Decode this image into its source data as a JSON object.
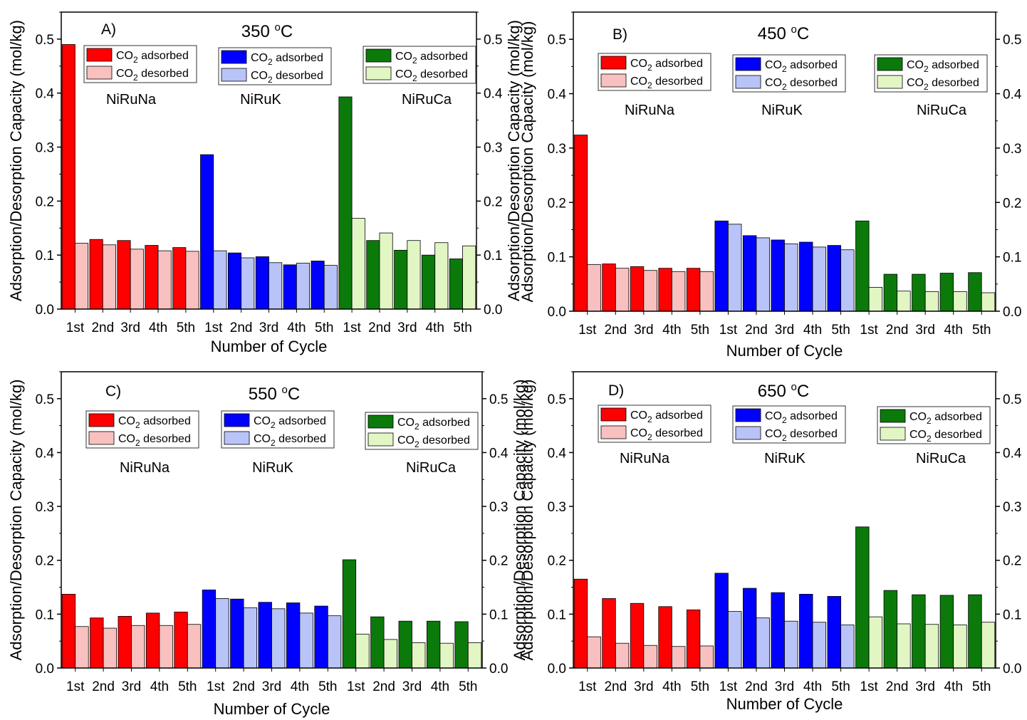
{
  "chart_data": [
    {
      "type": "bar",
      "panel_label": "A)",
      "title": "350",
      "title_sup": "o",
      "title_unit": "C",
      "xlabel": "Number of Cycle",
      "ylabel": "Adsorption/Desorption Capacity (mol/kg)",
      "ylim": [
        0,
        0.55
      ],
      "yticks": [
        "0.0",
        "0.1",
        "0.2",
        "0.3",
        "0.4",
        "0.5"
      ],
      "categories": [
        "1st",
        "2nd",
        "3rd",
        "4th",
        "5th",
        "1st",
        "2nd",
        "3rd",
        "4th",
        "5th",
        "1st",
        "2nd",
        "3rd",
        "4th",
        "5th"
      ],
      "groups": [
        {
          "name": "NiRuNa",
          "colors": {
            "adsorbed": "#ff0000",
            "desorbed": "#f9c0c0"
          },
          "adsorbed": [
            0.49,
            0.129,
            0.127,
            0.118,
            0.114
          ],
          "desorbed": [
            0.122,
            0.119,
            0.111,
            0.108,
            0.107
          ]
        },
        {
          "name": "NiRuK",
          "colors": {
            "adsorbed": "#0000ff",
            "desorbed": "#b8c4f8"
          },
          "adsorbed": [
            0.286,
            0.104,
            0.097,
            0.082,
            0.089
          ],
          "desorbed": [
            0.108,
            0.095,
            0.086,
            0.085,
            0.081
          ]
        },
        {
          "name": "NiRuCa",
          "colors": {
            "adsorbed": "#0b7a0b",
            "desorbed": "#e2f6c4"
          },
          "adsorbed": [
            0.393,
            0.127,
            0.109,
            0.1,
            0.093
          ],
          "desorbed": [
            0.168,
            0.141,
            0.127,
            0.123,
            0.117
          ]
        }
      ],
      "legend": {
        "adsorbed_label": "adsorbed",
        "desorbed_label": "desorbed",
        "species": "CO",
        "subscript": "2"
      }
    },
    {
      "type": "bar",
      "panel_label": "B)",
      "title": "450",
      "title_sup": "o",
      "title_unit": "C",
      "xlabel": "Number of Cycle",
      "ylabel": "Adsorption/Desorption Capacity (mol/kg)",
      "ylim": [
        0,
        0.55
      ],
      "yticks": [
        "0.0",
        "0.1",
        "0.2",
        "0.3",
        "0.4",
        "0.5"
      ],
      "categories": [
        "1st",
        "2nd",
        "3rd",
        "4th",
        "5th",
        "1st",
        "2nd",
        "3rd",
        "4th",
        "5th",
        "1st",
        "2nd",
        "3rd",
        "4th",
        "5th"
      ],
      "groups": [
        {
          "name": "NiRuNa",
          "colors": {
            "adsorbed": "#ff0000",
            "desorbed": "#f9c0c0"
          },
          "adsorbed": [
            0.324,
            0.087,
            0.082,
            0.079,
            0.079
          ],
          "desorbed": [
            0.086,
            0.079,
            0.075,
            0.073,
            0.073
          ]
        },
        {
          "name": "NiRuK",
          "colors": {
            "adsorbed": "#0000ff",
            "desorbed": "#b8c4f8"
          },
          "adsorbed": [
            0.166,
            0.139,
            0.131,
            0.127,
            0.121
          ],
          "desorbed": [
            0.16,
            0.135,
            0.124,
            0.118,
            0.113
          ]
        },
        {
          "name": "NiRuCa",
          "colors": {
            "adsorbed": "#0b7a0b",
            "desorbed": "#e2f6c4"
          },
          "adsorbed": [
            0.166,
            0.068,
            0.068,
            0.07,
            0.071
          ],
          "desorbed": [
            0.044,
            0.037,
            0.036,
            0.036,
            0.034
          ]
        }
      ],
      "legend": {
        "adsorbed_label": "adsorbed",
        "desorbed_label": "desorbed",
        "species": "CO",
        "subscript": "2"
      }
    },
    {
      "type": "bar",
      "panel_label": "C)",
      "title": "550",
      "title_sup": "o",
      "title_unit": "C",
      "xlabel": "Number of Cycle",
      "ylabel": "Adsorption/Desorption Capacity (mol/kg)",
      "ylim": [
        0,
        0.55
      ],
      "yticks": [
        "0.0",
        "0.1",
        "0.2",
        "0.3",
        "0.4",
        "0.5"
      ],
      "categories": [
        "1st",
        "2nd",
        "3rd",
        "4th",
        "5th",
        "1st",
        "2nd",
        "3rd",
        "4th",
        "5th",
        "1st",
        "2nd",
        "3rd",
        "4th",
        "5th"
      ],
      "groups": [
        {
          "name": "NiRuNa",
          "colors": {
            "adsorbed": "#ff0000",
            "desorbed": "#f9c0c0"
          },
          "adsorbed": [
            0.137,
            0.093,
            0.096,
            0.102,
            0.104
          ],
          "desorbed": [
            0.077,
            0.074,
            0.079,
            0.079,
            0.081
          ]
        },
        {
          "name": "NiRuK",
          "colors": {
            "adsorbed": "#0000ff",
            "desorbed": "#b8c4f8"
          },
          "adsorbed": [
            0.145,
            0.128,
            0.122,
            0.121,
            0.115
          ],
          "desorbed": [
            0.129,
            0.112,
            0.11,
            0.102,
            0.097
          ]
        },
        {
          "name": "NiRuCa",
          "colors": {
            "adsorbed": "#0b7a0b",
            "desorbed": "#e2f6c4"
          },
          "adsorbed": [
            0.201,
            0.095,
            0.087,
            0.087,
            0.086
          ],
          "desorbed": [
            0.063,
            0.053,
            0.047,
            0.046,
            0.047
          ]
        }
      ],
      "legend": {
        "adsorbed_label": "adsorbed",
        "desorbed_label": "desorbed",
        "species": "CO",
        "subscript": "2"
      }
    },
    {
      "type": "bar",
      "panel_label": "D)",
      "title": "650",
      "title_sup": "o",
      "title_unit": "C",
      "xlabel": "Number of Cycle",
      "ylabel": "Adsorption/Desorption Capacity (mol/kg)",
      "ylim": [
        0,
        0.55
      ],
      "yticks": [
        "0.0",
        "0.1",
        "0.2",
        "0.3",
        "0.4",
        "0.5"
      ],
      "categories": [
        "1st",
        "2nd",
        "3rd",
        "4th",
        "5th",
        "1st",
        "2nd",
        "3rd",
        "4th",
        "5th",
        "1st",
        "2nd",
        "3rd",
        "4th",
        "5th"
      ],
      "groups": [
        {
          "name": "NiRuNa",
          "colors": {
            "adsorbed": "#ff0000",
            "desorbed": "#f9c0c0"
          },
          "adsorbed": [
            0.165,
            0.129,
            0.12,
            0.114,
            0.108
          ],
          "desorbed": [
            0.058,
            0.046,
            0.042,
            0.04,
            0.041
          ]
        },
        {
          "name": "NiRuK",
          "colors": {
            "adsorbed": "#0000ff",
            "desorbed": "#b8c4f8"
          },
          "adsorbed": [
            0.176,
            0.148,
            0.14,
            0.137,
            0.133
          ],
          "desorbed": [
            0.105,
            0.093,
            0.087,
            0.085,
            0.08
          ]
        },
        {
          "name": "NiRuCa",
          "colors": {
            "adsorbed": "#0b7a0b",
            "desorbed": "#e2f6c4"
          },
          "adsorbed": [
            0.262,
            0.144,
            0.136,
            0.135,
            0.136
          ],
          "desorbed": [
            0.095,
            0.082,
            0.081,
            0.08,
            0.085
          ]
        }
      ],
      "legend": {
        "adsorbed_label": "adsorbed",
        "desorbed_label": "desorbed",
        "species": "CO",
        "subscript": "2"
      }
    }
  ]
}
